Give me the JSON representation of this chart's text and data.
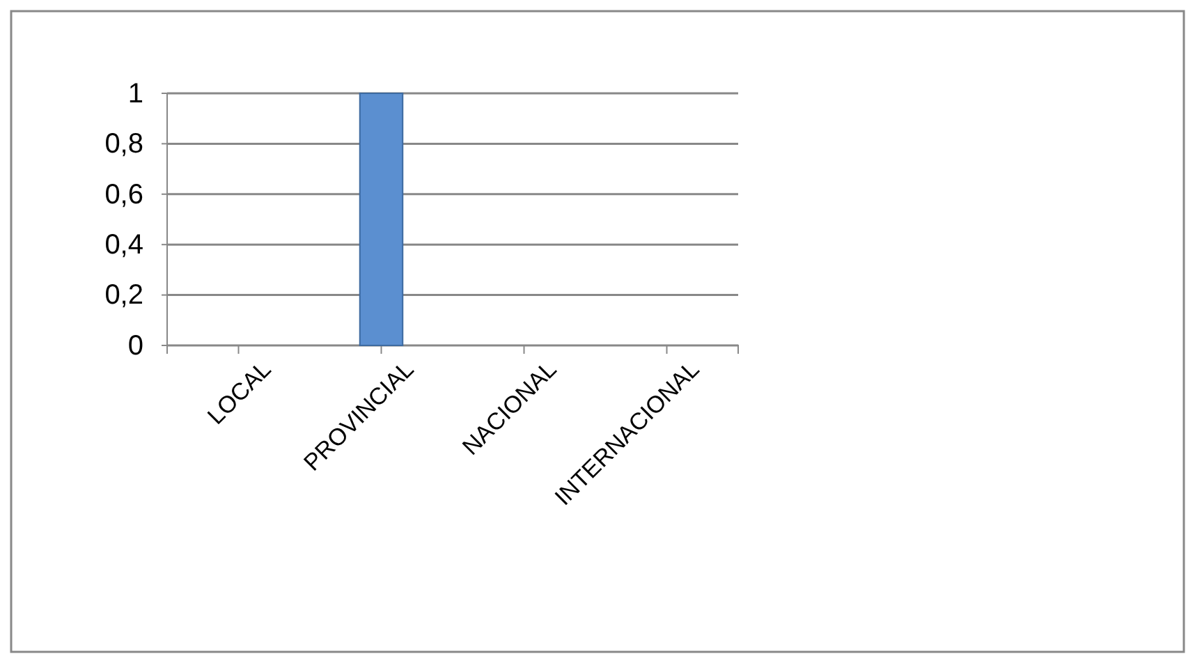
{
  "chart_data": {
    "type": "bar",
    "categories": [
      "LOCAL",
      "PROVINCIAL",
      "NACIONAL",
      "INTERNACIONAL"
    ],
    "series": [
      {
        "color": "#5b8fd0",
        "values": [
          0,
          1,
          0,
          0
        ]
      }
    ],
    "ylim": [
      0,
      1
    ],
    "yticks": [
      0,
      {
        "value": 0.2,
        "label": "0,2"
      },
      {
        "value": 0.4,
        "label": "0,4"
      },
      {
        "value": 0.6,
        "label": "0,6"
      },
      {
        "value": 0.8,
        "label": "0,8"
      },
      1
    ],
    "grid": "y"
  }
}
